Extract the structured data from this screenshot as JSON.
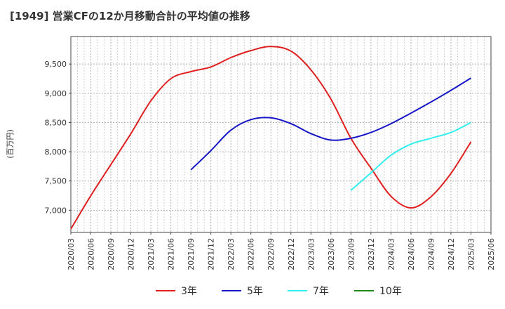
{
  "chart_data": {
    "type": "line",
    "title": "[1949]  営業CFの12か月移動合計の平均値の推移",
    "ylabel": "(百万円)",
    "xlabel": "",
    "ylim": [
      6620,
      9970
    ],
    "yticks": [
      7000,
      7500,
      8000,
      8500,
      9000,
      9500
    ],
    "ytick_labels": [
      "7,000",
      "7,500",
      "8,000",
      "8,500",
      "9,000",
      "9,500"
    ],
    "x_categories": [
      "2020/03",
      "2020/06",
      "2020/09",
      "2020/12",
      "2021/03",
      "2021/06",
      "2021/09",
      "2021/12",
      "2022/03",
      "2022/06",
      "2022/09",
      "2022/12",
      "2023/03",
      "2023/06",
      "2023/09",
      "2023/12",
      "2024/03",
      "2024/06",
      "2024/09",
      "2024/12",
      "2025/03",
      "2025/06"
    ],
    "grid": true,
    "legend_position": "bottom",
    "series": [
      {
        "name": "3年",
        "color": "#e02020",
        "points": [
          [
            "2020/03",
            6680
          ],
          [
            "2020/06",
            7250
          ],
          [
            "2020/09",
            7780
          ],
          [
            "2020/12",
            8310
          ],
          [
            "2021/03",
            8870
          ],
          [
            "2021/06",
            9250
          ],
          [
            "2021/09",
            9370
          ],
          [
            "2021/12",
            9450
          ],
          [
            "2022/03",
            9610
          ],
          [
            "2022/06",
            9730
          ],
          [
            "2022/09",
            9800
          ],
          [
            "2022/12",
            9720
          ],
          [
            "2023/03",
            9400
          ],
          [
            "2023/06",
            8900
          ],
          [
            "2023/09",
            8230
          ],
          [
            "2023/12",
            7720
          ],
          [
            "2024/03",
            7240
          ],
          [
            "2024/06",
            7040
          ],
          [
            "2024/09",
            7230
          ],
          [
            "2024/12",
            7630
          ],
          [
            "2025/03",
            8170
          ]
        ]
      },
      {
        "name": "5年",
        "color": "#1515c8",
        "points": [
          [
            "2021/09",
            7690
          ],
          [
            "2021/12",
            8020
          ],
          [
            "2022/03",
            8370
          ],
          [
            "2022/06",
            8550
          ],
          [
            "2022/09",
            8580
          ],
          [
            "2022/12",
            8480
          ],
          [
            "2023/03",
            8310
          ],
          [
            "2023/06",
            8200
          ],
          [
            "2023/09",
            8230
          ],
          [
            "2023/12",
            8330
          ],
          [
            "2024/03",
            8480
          ],
          [
            "2024/06",
            8660
          ],
          [
            "2024/09",
            8850
          ],
          [
            "2024/12",
            9050
          ],
          [
            "2025/03",
            9260
          ]
        ]
      },
      {
        "name": "7年",
        "color": "#33eeee",
        "points": [
          [
            "2023/09",
            7340
          ],
          [
            "2023/12",
            7640
          ],
          [
            "2024/03",
            7940
          ],
          [
            "2024/06",
            8130
          ],
          [
            "2024/09",
            8230
          ],
          [
            "2024/12",
            8330
          ],
          [
            "2025/03",
            8500
          ]
        ]
      },
      {
        "name": "10年",
        "color": "#1a8c1a",
        "points": []
      }
    ]
  }
}
